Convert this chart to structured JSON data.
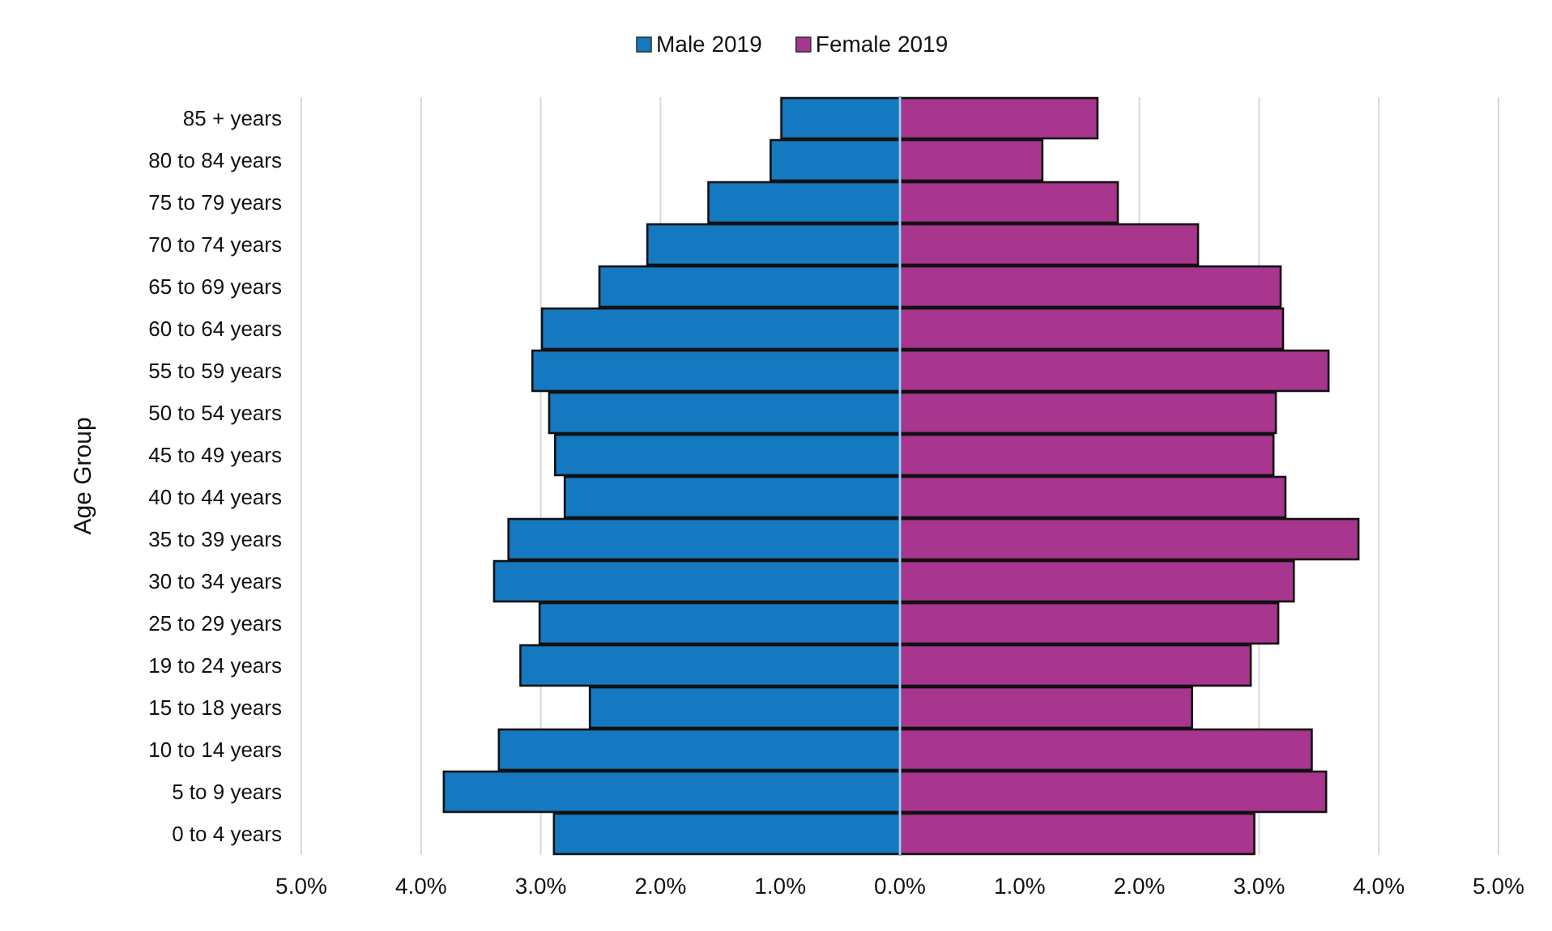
{
  "chart_data": {
    "type": "bar",
    "orientation": "horizontal",
    "ylabel": "Age Group",
    "legend": "top",
    "grid": "x",
    "categories": [
      "85 + years",
      "80 to 84 years",
      "75 to 79 years",
      "70 to 74 years",
      "65 to 69 years",
      "60 to 64 years",
      "55 to 59 years",
      "50 to 54 years",
      "45 to 49 years",
      "40 to 44 years",
      "35 to 39 years",
      "30 to 34 years",
      "25 to 29 years",
      "19 to 24 years",
      "15 to 18 years",
      "10 to 14 years",
      "5 to 9 years",
      "0 to 4 years"
    ],
    "series": [
      {
        "name": "Male 2019",
        "color": "#1479c0",
        "values": [
          -0.99,
          -1.08,
          -1.6,
          -2.11,
          -2.51,
          -2.99,
          -3.07,
          -2.93,
          -2.88,
          -2.8,
          -3.27,
          -3.39,
          -3.01,
          -3.17,
          -2.59,
          -3.35,
          -3.81,
          -2.89
        ]
      },
      {
        "name": "Female 2019",
        "color": "#a8358e",
        "values": [
          1.65,
          1.19,
          1.82,
          2.49,
          3.18,
          3.2,
          3.58,
          3.14,
          3.12,
          3.22,
          3.83,
          3.29,
          3.16,
          2.93,
          2.44,
          3.44,
          3.56,
          2.96
        ]
      }
    ],
    "stacked": true,
    "ref_lines": [
      {
        "axis": "x",
        "value": 0,
        "color": "#8fd3ff"
      }
    ],
    "xlim": [
      -5,
      5
    ],
    "xticks": [
      {
        "value": -5,
        "label": "5.0%"
      },
      {
        "value": -4,
        "label": "4.0%"
      },
      {
        "value": -3,
        "label": "3.0%"
      },
      {
        "value": -2,
        "label": "2.0%"
      },
      {
        "value": -1,
        "label": "1.0%"
      },
      {
        "value": 0,
        "label": "0.0%"
      },
      {
        "value": 1,
        "label": "1.0%"
      },
      {
        "value": 2,
        "label": "2.0%"
      },
      {
        "value": 3,
        "label": "3.0%"
      },
      {
        "value": 4,
        "label": "4.0%"
      },
      {
        "value": 5,
        "label": "5.0%"
      }
    ]
  }
}
